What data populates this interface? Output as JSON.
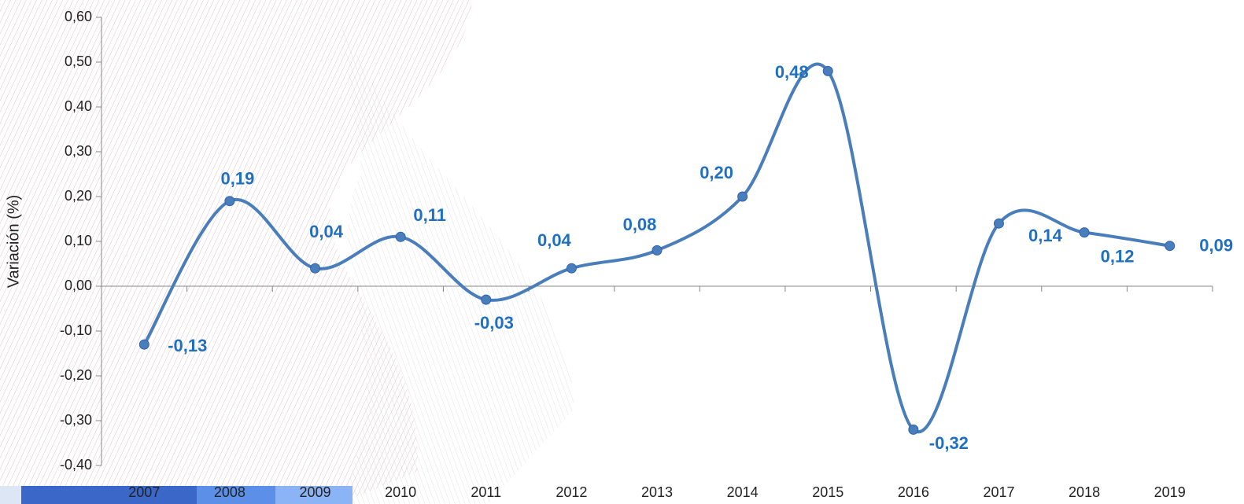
{
  "chart_data": {
    "type": "line",
    "y_label": "Variación (%)",
    "categories": [
      "2007",
      "2008",
      "2009",
      "2010",
      "2011",
      "2012",
      "2013",
      "2014",
      "2015",
      "2016",
      "2017",
      "2018",
      "2019"
    ],
    "series": [
      {
        "color": "#4a7ebb",
        "values": [
          -0.13,
          0.19,
          0.04,
          0.11,
          -0.03,
          0.04,
          0.08,
          0.2,
          0.48,
          -0.32,
          0.14,
          0.12,
          0.09
        ],
        "value_labels": [
          "-0,13",
          "0,19",
          "0,04",
          "0,11",
          "-0,03",
          "0,04",
          "0,08",
          "0,20",
          "0,48",
          "-0,32",
          "0,14",
          "0,12",
          "0,09"
        ]
      }
    ],
    "label_color": "#1f70c1",
    "ylim": [
      -0.4,
      0.6
    ],
    "yticks": [
      {
        "value": -0.4,
        "label": "-0,40"
      },
      {
        "value": -0.3,
        "label": "-0,30"
      },
      {
        "value": -0.2,
        "label": "-0,20"
      },
      {
        "value": -0.1,
        "label": "-0,10"
      },
      {
        "value": 0,
        "label": "0,00"
      },
      {
        "value": 0.1,
        "label": "0,10"
      },
      {
        "value": 0.2,
        "label": "0,20"
      },
      {
        "value": 0.3,
        "label": "0,30"
      },
      {
        "value": 0.4,
        "label": "0,40"
      },
      {
        "value": 0.5,
        "label": "0,50"
      },
      {
        "value": 0.6,
        "label": "0,60"
      }
    ],
    "smooth": true
  }
}
